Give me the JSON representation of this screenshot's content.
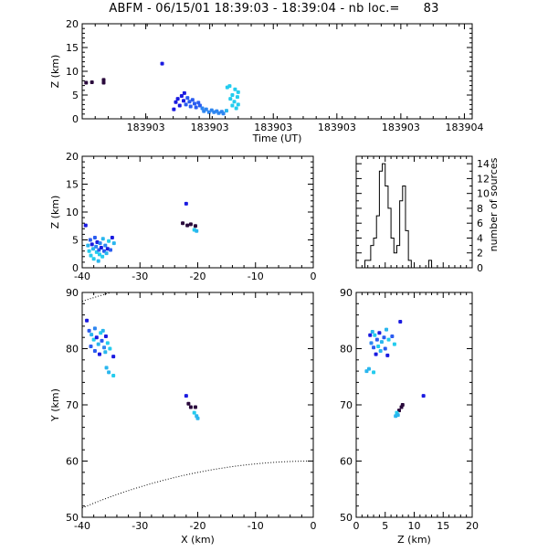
{
  "title": "ABFM - 06/15/01 18:39:03 - 18:39:04 - nb loc.=      83",
  "colors": {
    "axis": "#000000",
    "dark": "#2a0a3c",
    "deep_blue": "#1a1ae0",
    "blue": "#2a5cf0",
    "mid_blue": "#2e86f0",
    "light_blue": "#2ab6ee",
    "cyan": "#24ccee"
  },
  "chart_data": [
    {
      "id": "time-height",
      "type": "scatter",
      "xlabel": "Time (UT)",
      "ylabel": "Z (km)",
      "xlim": [
        0,
        1
      ],
      "ylim": [
        0,
        20
      ],
      "xtick_labels": [
        "183903",
        "183903",
        "183903",
        "183903",
        "183903",
        "183904"
      ],
      "yticks": [
        0,
        5,
        10,
        15,
        20
      ],
      "points": [
        {
          "x": 0.01,
          "y": 7.6,
          "c": "dark"
        },
        {
          "x": 0.025,
          "y": 7.7,
          "c": "dark"
        },
        {
          "x": 0.055,
          "y": 8.2,
          "c": "dark"
        },
        {
          "x": 0.055,
          "y": 7.6,
          "c": "dark"
        },
        {
          "x": 0.205,
          "y": 11.6,
          "c": "deep_blue"
        },
        {
          "x": 0.235,
          "y": 2.0,
          "c": "deep_blue"
        },
        {
          "x": 0.24,
          "y": 3.5,
          "c": "deep_blue"
        },
        {
          "x": 0.245,
          "y": 4.2,
          "c": "deep_blue"
        },
        {
          "x": 0.25,
          "y": 2.8,
          "c": "deep_blue"
        },
        {
          "x": 0.255,
          "y": 4.8,
          "c": "deep_blue"
        },
        {
          "x": 0.26,
          "y": 3.8,
          "c": "deep_blue"
        },
        {
          "x": 0.262,
          "y": 5.4,
          "c": "deep_blue"
        },
        {
          "x": 0.266,
          "y": 3.0,
          "c": "blue"
        },
        {
          "x": 0.27,
          "y": 4.4,
          "c": "blue"
        },
        {
          "x": 0.275,
          "y": 3.6,
          "c": "blue"
        },
        {
          "x": 0.278,
          "y": 2.6,
          "c": "blue"
        },
        {
          "x": 0.283,
          "y": 4.0,
          "c": "blue"
        },
        {
          "x": 0.288,
          "y": 3.2,
          "c": "blue"
        },
        {
          "x": 0.292,
          "y": 2.4,
          "c": "blue"
        },
        {
          "x": 0.298,
          "y": 3.4,
          "c": "blue"
        },
        {
          "x": 0.302,
          "y": 2.8,
          "c": "blue"
        },
        {
          "x": 0.308,
          "y": 2.2,
          "c": "mid_blue"
        },
        {
          "x": 0.312,
          "y": 1.6,
          "c": "mid_blue"
        },
        {
          "x": 0.318,
          "y": 2.0,
          "c": "mid_blue"
        },
        {
          "x": 0.325,
          "y": 1.4,
          "c": "mid_blue"
        },
        {
          "x": 0.332,
          "y": 1.8,
          "c": "mid_blue"
        },
        {
          "x": 0.338,
          "y": 1.4,
          "c": "mid_blue"
        },
        {
          "x": 0.345,
          "y": 1.6,
          "c": "mid_blue"
        },
        {
          "x": 0.35,
          "y": 1.2,
          "c": "mid_blue"
        },
        {
          "x": 0.358,
          "y": 1.5,
          "c": "mid_blue"
        },
        {
          "x": 0.362,
          "y": 1.1,
          "c": "mid_blue"
        },
        {
          "x": 0.37,
          "y": 1.7,
          "c": "light_blue"
        },
        {
          "x": 0.372,
          "y": 6.6,
          "c": "cyan"
        },
        {
          "x": 0.378,
          "y": 6.9,
          "c": "cyan"
        },
        {
          "x": 0.38,
          "y": 4.2,
          "c": "cyan"
        },
        {
          "x": 0.385,
          "y": 2.8,
          "c": "cyan"
        },
        {
          "x": 0.385,
          "y": 5.0,
          "c": "cyan"
        },
        {
          "x": 0.39,
          "y": 3.6,
          "c": "cyan"
        },
        {
          "x": 0.392,
          "y": 6.2,
          "c": "cyan"
        },
        {
          "x": 0.395,
          "y": 2.2,
          "c": "cyan"
        },
        {
          "x": 0.398,
          "y": 4.6,
          "c": "cyan"
        },
        {
          "x": 0.4,
          "y": 3.0,
          "c": "cyan"
        },
        {
          "x": 0.4,
          "y": 5.6,
          "c": "cyan"
        }
      ]
    },
    {
      "id": "x-height",
      "type": "scatter",
      "xlabel": "",
      "ylabel": "Z (km)",
      "xlim": [
        -40,
        0
      ],
      "ylim": [
        0,
        20
      ],
      "xticks": [
        -40,
        -30,
        -20,
        -10,
        0
      ],
      "yticks": [
        0,
        5,
        10,
        15,
        20
      ],
      "points": [
        {
          "x": -39.4,
          "y": 7.6,
          "c": "deep_blue"
        },
        {
          "x": -39.0,
          "y": 4.0,
          "c": "light_blue"
        },
        {
          "x": -38.8,
          "y": 3.0,
          "c": "cyan"
        },
        {
          "x": -38.6,
          "y": 5.0,
          "c": "blue"
        },
        {
          "x": -38.5,
          "y": 2.2,
          "c": "cyan"
        },
        {
          "x": -38.3,
          "y": 4.2,
          "c": "deep_blue"
        },
        {
          "x": -38.1,
          "y": 3.4,
          "c": "light_blue"
        },
        {
          "x": -38.0,
          "y": 1.6,
          "c": "cyan"
        },
        {
          "x": -37.8,
          "y": 5.4,
          "c": "blue"
        },
        {
          "x": -37.6,
          "y": 3.8,
          "c": "mid_blue"
        },
        {
          "x": -37.5,
          "y": 2.8,
          "c": "cyan"
        },
        {
          "x": -37.4,
          "y": 4.6,
          "c": "deep_blue"
        },
        {
          "x": -37.2,
          "y": 1.2,
          "c": "light_blue"
        },
        {
          "x": -37.1,
          "y": 3.2,
          "c": "blue"
        },
        {
          "x": -37.0,
          "y": 2.4,
          "c": "cyan"
        },
        {
          "x": -36.9,
          "y": 4.4,
          "c": "mid_blue"
        },
        {
          "x": -36.7,
          "y": 3.6,
          "c": "deep_blue"
        },
        {
          "x": -36.5,
          "y": 2.0,
          "c": "cyan"
        },
        {
          "x": -36.4,
          "y": 5.2,
          "c": "light_blue"
        },
        {
          "x": -36.2,
          "y": 3.0,
          "c": "blue"
        },
        {
          "x": -36.0,
          "y": 4.0,
          "c": "mid_blue"
        },
        {
          "x": -35.8,
          "y": 2.6,
          "c": "light_blue"
        },
        {
          "x": -35.6,
          "y": 3.4,
          "c": "deep_blue"
        },
        {
          "x": -35.4,
          "y": 4.8,
          "c": "cyan"
        },
        {
          "x": -35.1,
          "y": 3.2,
          "c": "blue"
        },
        {
          "x": -34.8,
          "y": 5.4,
          "c": "deep_blue"
        },
        {
          "x": -34.5,
          "y": 4.4,
          "c": "light_blue"
        },
        {
          "x": -22.0,
          "y": 11.5,
          "c": "deep_blue"
        },
        {
          "x": -22.6,
          "y": 8.0,
          "c": "dark"
        },
        {
          "x": -21.8,
          "y": 7.6,
          "c": "dark"
        },
        {
          "x": -21.2,
          "y": 7.8,
          "c": "dark"
        },
        {
          "x": -20.4,
          "y": 7.5,
          "c": "dark"
        },
        {
          "x": -20.6,
          "y": 6.8,
          "c": "cyan"
        },
        {
          "x": -20.2,
          "y": 6.6,
          "c": "light_blue"
        }
      ]
    },
    {
      "id": "height-histogram",
      "type": "histogram",
      "ylabel": "number of sources",
      "xlim": [
        0,
        20
      ],
      "ylim": [
        0,
        15
      ],
      "xticks": [
        0,
        5,
        10,
        15,
        20
      ],
      "yticks": [
        0,
        2,
        4,
        6,
        8,
        10,
        12,
        14
      ],
      "bin_width": 0.5,
      "counts": [
        0,
        0,
        0,
        1,
        1,
        3,
        4,
        7,
        13,
        14,
        11,
        8,
        4,
        2,
        3,
        9,
        11,
        5,
        1,
        0,
        0,
        0,
        0,
        0,
        0,
        1,
        0,
        0,
        0,
        0,
        0,
        0,
        0,
        0,
        0,
        0,
        0,
        0,
        0,
        0
      ]
    },
    {
      "id": "plan-view",
      "type": "scatter",
      "xlabel": "X (km)",
      "ylabel": "Y (km)",
      "xlim": [
        -40,
        0
      ],
      "ylim": [
        50,
        90
      ],
      "xticks": [
        -40,
        -30,
        -20,
        -10,
        0
      ],
      "yticks": [
        50,
        60,
        70,
        80,
        90
      ],
      "range_rings_km": [
        100,
        125
      ],
      "points": [
        {
          "x": -39.2,
          "y": 85.0,
          "c": "deep_blue"
        },
        {
          "x": -38.8,
          "y": 83.2,
          "c": "blue"
        },
        {
          "x": -38.4,
          "y": 82.5,
          "c": "light_blue"
        },
        {
          "x": -38.0,
          "y": 81.6,
          "c": "cyan"
        },
        {
          "x": -38.5,
          "y": 80.4,
          "c": "blue"
        },
        {
          "x": -37.8,
          "y": 83.6,
          "c": "mid_blue"
        },
        {
          "x": -37.5,
          "y": 82.0,
          "c": "deep_blue"
        },
        {
          "x": -37.2,
          "y": 80.8,
          "c": "light_blue"
        },
        {
          "x": -37.8,
          "y": 79.6,
          "c": "blue"
        },
        {
          "x": -36.8,
          "y": 82.8,
          "c": "cyan"
        },
        {
          "x": -36.6,
          "y": 81.4,
          "c": "blue"
        },
        {
          "x": -36.4,
          "y": 83.2,
          "c": "light_blue"
        },
        {
          "x": -36.2,
          "y": 80.2,
          "c": "mid_blue"
        },
        {
          "x": -35.9,
          "y": 82.2,
          "c": "deep_blue"
        },
        {
          "x": -35.6,
          "y": 81.0,
          "c": "cyan"
        },
        {
          "x": -37.0,
          "y": 79.0,
          "c": "deep_blue"
        },
        {
          "x": -36.0,
          "y": 79.4,
          "c": "light_blue"
        },
        {
          "x": -35.2,
          "y": 80.0,
          "c": "cyan"
        },
        {
          "x": -34.6,
          "y": 78.6,
          "c": "deep_blue"
        },
        {
          "x": -35.8,
          "y": 76.6,
          "c": "light_blue"
        },
        {
          "x": -35.4,
          "y": 75.8,
          "c": "light_blue"
        },
        {
          "x": -34.6,
          "y": 75.2,
          "c": "cyan"
        },
        {
          "x": -22.0,
          "y": 71.6,
          "c": "deep_blue"
        },
        {
          "x": -21.6,
          "y": 70.2,
          "c": "dark"
        },
        {
          "x": -21.2,
          "y": 69.6,
          "c": "dark"
        },
        {
          "x": -20.4,
          "y": 69.6,
          "c": "dark"
        },
        {
          "x": -20.6,
          "y": 68.6,
          "c": "cyan"
        },
        {
          "x": -20.2,
          "y": 68.0,
          "c": "light_blue"
        },
        {
          "x": -20.0,
          "y": 67.6,
          "c": "light_blue"
        }
      ]
    },
    {
      "id": "z-y-view",
      "type": "scatter",
      "xlabel": "Z (km)",
      "ylabel": "",
      "xlim": [
        0,
        20
      ],
      "ylim": [
        50,
        90
      ],
      "xticks": [
        0,
        5,
        10,
        15,
        20
      ],
      "yticks": [
        50,
        60,
        70,
        80,
        90
      ],
      "points": [
        {
          "x": 2.8,
          "y": 83.0,
          "c": "light_blue"
        },
        {
          "x": 3.2,
          "y": 82.4,
          "c": "cyan"
        },
        {
          "x": 3.6,
          "y": 81.6,
          "c": "blue"
        },
        {
          "x": 4.0,
          "y": 82.8,
          "c": "deep_blue"
        },
        {
          "x": 4.4,
          "y": 81.2,
          "c": "light_blue"
        },
        {
          "x": 2.6,
          "y": 81.0,
          "c": "mid_blue"
        },
        {
          "x": 3.0,
          "y": 80.2,
          "c": "blue"
        },
        {
          "x": 3.8,
          "y": 80.4,
          "c": "cyan"
        },
        {
          "x": 4.8,
          "y": 82.0,
          "c": "blue"
        },
        {
          "x": 5.2,
          "y": 83.4,
          "c": "light_blue"
        },
        {
          "x": 5.6,
          "y": 81.6,
          "c": "cyan"
        },
        {
          "x": 2.4,
          "y": 82.4,
          "c": "deep_blue"
        },
        {
          "x": 6.2,
          "y": 82.2,
          "c": "blue"
        },
        {
          "x": 4.2,
          "y": 79.6,
          "c": "light_blue"
        },
        {
          "x": 5.0,
          "y": 80.0,
          "c": "blue"
        },
        {
          "x": 3.4,
          "y": 79.0,
          "c": "deep_blue"
        },
        {
          "x": 7.6,
          "y": 84.8,
          "c": "deep_blue"
        },
        {
          "x": 5.4,
          "y": 78.8,
          "c": "deep_blue"
        },
        {
          "x": 6.6,
          "y": 80.8,
          "c": "cyan"
        },
        {
          "x": 2.2,
          "y": 76.4,
          "c": "light_blue"
        },
        {
          "x": 3.0,
          "y": 75.8,
          "c": "cyan"
        },
        {
          "x": 1.8,
          "y": 76.0,
          "c": "light_blue"
        },
        {
          "x": 11.6,
          "y": 71.6,
          "c": "deep_blue"
        },
        {
          "x": 8.0,
          "y": 70.0,
          "c": "dark"
        },
        {
          "x": 7.8,
          "y": 69.6,
          "c": "dark"
        },
        {
          "x": 7.4,
          "y": 69.0,
          "c": "dark"
        },
        {
          "x": 7.0,
          "y": 68.6,
          "c": "cyan"
        },
        {
          "x": 6.8,
          "y": 68.0,
          "c": "light_blue"
        },
        {
          "x": 7.2,
          "y": 68.2,
          "c": "light_blue"
        }
      ]
    }
  ]
}
